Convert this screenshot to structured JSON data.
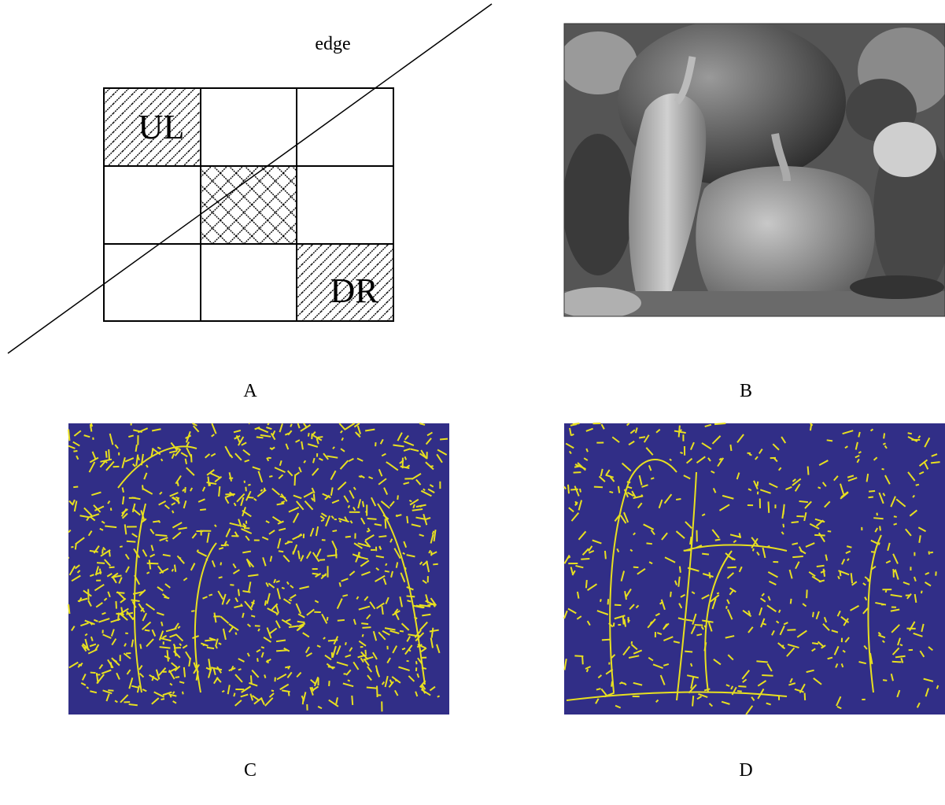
{
  "diagram": {
    "edge_label": "edge",
    "cells": {
      "upper_left": "UL",
      "down_right": "DR"
    }
  },
  "panels": [
    {
      "label": "A"
    },
    {
      "label": "B"
    },
    {
      "label": "C"
    },
    {
      "label": "D"
    }
  ]
}
